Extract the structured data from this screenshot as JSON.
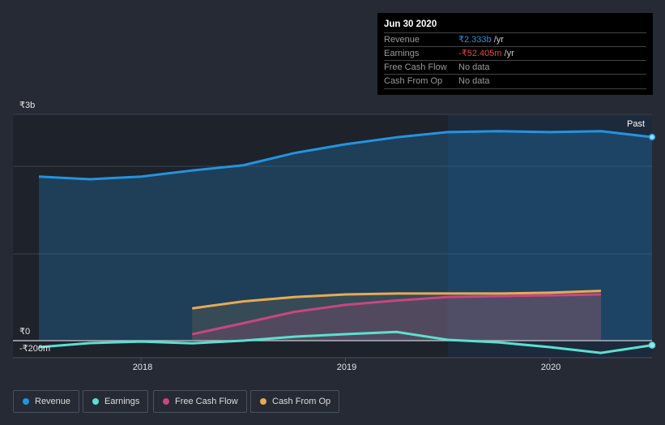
{
  "tooltip": {
    "date": "Jun 30 2020",
    "rows": [
      {
        "label": "Revenue",
        "value": "₹2.333b",
        "unit": " /yr",
        "color": "#2394df"
      },
      {
        "label": "Earnings",
        "value": "-₹52.405m",
        "unit": " /yr",
        "color": "#e64141"
      },
      {
        "label": "Free Cash Flow",
        "value": "No data",
        "unit": "",
        "color": "#9a9a9a"
      },
      {
        "label": "Cash From Op",
        "value": "No data",
        "unit": "",
        "color": "#9a9a9a"
      }
    ]
  },
  "past_label": "Past",
  "chart_data": {
    "type": "area",
    "y_tick_labels": [
      "₹3b",
      "₹0",
      "-₹200m"
    ],
    "x_tick_labels": [
      "2018",
      "2019",
      "2020"
    ],
    "x_ticks": [
      2018,
      2019,
      2020
    ],
    "xlim": [
      2017.5,
      2020.5
    ],
    "ylim": [
      -0.195,
      2.593
    ],
    "y_unit": "₹ billions",
    "past_region_start": 2019.5,
    "series": [
      {
        "name": "Revenue",
        "color": "#2394df",
        "x": [
          2017.5,
          2017.75,
          2018,
          2018.25,
          2018.5,
          2018.75,
          2019,
          2019.25,
          2019.5,
          2019.75,
          2020,
          2020.25,
          2020.5
        ],
        "values": [
          1.88,
          1.85,
          1.88,
          1.95,
          2.01,
          2.15,
          2.25,
          2.33,
          2.39,
          2.4,
          2.39,
          2.4,
          2.333
        ]
      },
      {
        "name": "Earnings",
        "color": "#5ce0cf",
        "x": [
          2017.5,
          2017.75,
          2018,
          2018.25,
          2018.5,
          2018.75,
          2019,
          2019.25,
          2019.5,
          2019.75,
          2020,
          2020.25,
          2020.5
        ],
        "values": [
          -0.074,
          -0.028,
          -0.01,
          -0.03,
          0,
          0.046,
          0.074,
          0.1,
          0.01,
          -0.02,
          -0.074,
          -0.14,
          -0.052
        ]
      },
      {
        "name": "Free Cash Flow",
        "color": "#c9467e",
        "x": [
          2018.25,
          2018.5,
          2018.75,
          2019,
          2019.25,
          2019.5,
          2019.75,
          2020,
          2020.25
        ],
        "values": [
          0.074,
          0.2,
          0.33,
          0.41,
          0.46,
          0.5,
          0.51,
          0.52,
          0.53
        ]
      },
      {
        "name": "Cash From Op",
        "color": "#e8aa55",
        "x": [
          2018.25,
          2018.5,
          2018.75,
          2019,
          2019.25,
          2019.5,
          2019.75,
          2020,
          2020.25
        ],
        "values": [
          0.37,
          0.45,
          0.5,
          0.53,
          0.54,
          0.54,
          0.54,
          0.55,
          0.57
        ]
      }
    ]
  }
}
